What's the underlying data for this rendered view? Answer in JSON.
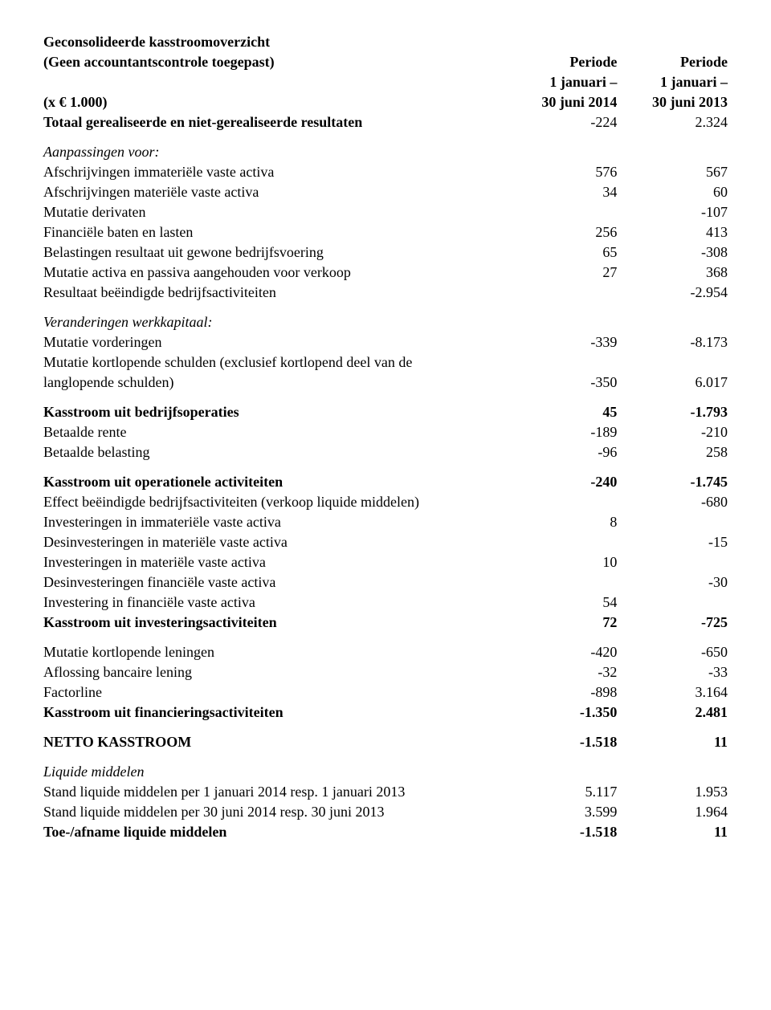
{
  "header": {
    "title_line1": "Geconsolideerde kasstroomoverzicht",
    "title_line2": "(Geen accountantscontrole toegepast)",
    "unit_label": "(x € 1.000)",
    "period1_line1": "Periode",
    "period1_line2": "1 januari –",
    "period1_line3": "30 juni 2014",
    "period2_line1": "Periode",
    "period2_line2": "1 januari –",
    "period2_line3": "30 juni 2013"
  },
  "rows": {
    "total_results": {
      "label": "Totaal gerealiseerde en niet-gerealiseerde resultaten",
      "v1": "-224",
      "v2": "2.324"
    },
    "adjustments_heading": "Aanpassingen voor:",
    "afschr_immat": {
      "label": "Afschrijvingen immateriële vaste activa",
      "v1": "576",
      "v2": "567"
    },
    "afschr_mat": {
      "label": "Afschrijvingen materiële vaste activa",
      "v1": "34",
      "v2": "60"
    },
    "mutatie_deriv": {
      "label": "Mutatie derivaten",
      "v1": "",
      "v2": "-107"
    },
    "fin_baten": {
      "label": "Financiële baten en lasten",
      "v1": "256",
      "v2": "413"
    },
    "belastingen": {
      "label": "Belastingen resultaat uit gewone bedrijfsvoering",
      "v1": "65",
      "v2": "-308"
    },
    "mutatie_activa": {
      "label": "Mutatie activa en passiva aangehouden voor verkoop",
      "v1": "27",
      "v2": "368"
    },
    "resultaat_beeind": {
      "label": "Resultaat beëindigde bedrijfsactiviteiten",
      "v1": "",
      "v2": "-2.954"
    },
    "verand_werkk_heading": "Veranderingen werkkapitaal:",
    "mutatie_vorderingen": {
      "label": "Mutatie vorderingen",
      "v1": "-339",
      "v2": "-8.173"
    },
    "mutatie_kortl_line1": "Mutatie kortlopende schulden (exclusief kortlopend deel van de",
    "mutatie_kortl": {
      "label": "langlopende schulden)",
      "v1": "-350",
      "v2": "6.017"
    },
    "kasstroom_bedrijfsop": {
      "label": "Kasstroom uit bedrijfsoperaties",
      "v1": "45",
      "v2": "-1.793"
    },
    "betaalde_rente": {
      "label": "Betaalde rente",
      "v1": "-189",
      "v2": "-210"
    },
    "betaalde_belasting": {
      "label": "Betaalde belasting",
      "v1": "-96",
      "v2": "258"
    },
    "kasstroom_operationele": {
      "label": "Kasstroom uit operationele activiteiten",
      "v1": "-240",
      "v2": "-1.745"
    },
    "effect_beeind": {
      "label": "Effect beëindigde bedrijfsactiviteiten (verkoop liquide middelen)",
      "v1": "",
      "v2": "-680"
    },
    "invest_immat": {
      "label": "Investeringen in immateriële vaste activa",
      "v1": "8",
      "v2": ""
    },
    "desinvest_mat": {
      "label": "Desinvesteringen in materiële vaste activa",
      "v1": "",
      "v2": "-15"
    },
    "invest_mat": {
      "label": "Investeringen in materiële vaste activa",
      "v1": "10",
      "v2": ""
    },
    "desinvest_fin": {
      "label": "Desinvesteringen financiële vaste activa",
      "v1": "",
      "v2": "-30"
    },
    "invest_fin": {
      "label": "Investering in financiële vaste activa",
      "v1": "54",
      "v2": ""
    },
    "kasstroom_invest": {
      "label": "Kasstroom uit investeringsactiviteiten",
      "v1": "72",
      "v2": "-725"
    },
    "mutatie_kortl_leningen": {
      "label": "Mutatie kortlopende leningen",
      "v1": "-420",
      "v2": "-650"
    },
    "aflossing_banc": {
      "label": "Aflossing bancaire lening",
      "v1": "-32",
      "v2": "-33"
    },
    "factorline": {
      "label": "Factorline",
      "v1": "-898",
      "v2": "3.164"
    },
    "kasstroom_financiering": {
      "label": "Kasstroom uit financieringsactiviteiten",
      "v1": "-1.350",
      "v2": "2.481"
    },
    "netto_kasstroom": {
      "label": "NETTO KASSTROOM",
      "v1": "-1.518",
      "v2": "11"
    },
    "liquide_heading": "Liquide middelen",
    "stand_1jan": {
      "label": "Stand liquide middelen per 1 januari 2014 resp. 1 januari 2013",
      "v1": "5.117",
      "v2": "1.953"
    },
    "stand_30jun": {
      "label": "Stand liquide middelen per 30 juni 2014 resp. 30 juni 2013",
      "v1": "3.599",
      "v2": "1.964"
    },
    "toe_afname": {
      "label": "Toe-/afname liquide middelen",
      "v1": "-1.518",
      "v2": "11"
    }
  }
}
